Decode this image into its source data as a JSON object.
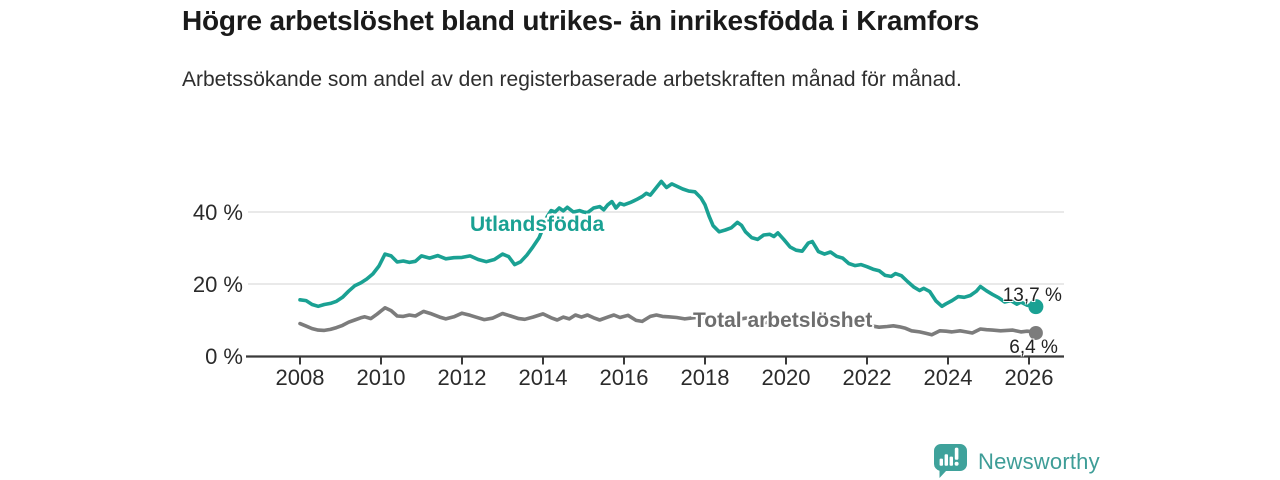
{
  "header": {
    "title": "Högre arbetslöshet bland utrikes- än inrikesfödda i Kramfors",
    "subtitle": "Arbetssökande som andel av den registerbaserade arbetskraften månad för månad."
  },
  "footer": {
    "logo_text": "Newsworthy"
  },
  "colors": {
    "utlandsfodda": "#1aa193",
    "total": "#7c7c7c",
    "total_label": "#6e6e6e",
    "grid": "#dcdcdc",
    "axis": "#3a3a3a",
    "tick_text": "#2b2b2b",
    "title_text": "#1a1a1a",
    "logo_teal": "#3FA29B"
  },
  "chart_data": {
    "type": "line",
    "title": "Högre arbetslöshet bland utrikes- än inrikesfödda i Kramfors",
    "xlabel": "",
    "ylabel": "",
    "grid": true,
    "x_axis": {
      "range": [
        2006.6,
        2026.9
      ],
      "ticks": [
        2008,
        2010,
        2012,
        2014,
        2016,
        2018,
        2020,
        2022,
        2024,
        2026
      ]
    },
    "y_axis": {
      "range": [
        0,
        50
      ],
      "ticks": [
        {
          "value": 0,
          "label": "0 %"
        },
        {
          "value": 20,
          "label": "20 %"
        },
        {
          "value": 40,
          "label": "40 %"
        }
      ]
    },
    "series": [
      {
        "name": "Utlandsfödda",
        "color": "#1aa193",
        "end_label": "13,7 %",
        "end_value": 13.7,
        "points": [
          [
            2008.0,
            15.6
          ],
          [
            2008.15,
            15.4
          ],
          [
            2008.3,
            14.3
          ],
          [
            2008.45,
            13.8
          ],
          [
            2008.6,
            14.3
          ],
          [
            2008.75,
            14.6
          ],
          [
            2008.9,
            15.2
          ],
          [
            2009.05,
            16.3
          ],
          [
            2009.2,
            18.0
          ],
          [
            2009.35,
            19.5
          ],
          [
            2009.5,
            20.3
          ],
          [
            2009.65,
            21.4
          ],
          [
            2009.8,
            22.8
          ],
          [
            2009.95,
            25.0
          ],
          [
            2010.1,
            28.3
          ],
          [
            2010.25,
            27.8
          ],
          [
            2010.4,
            26.1
          ],
          [
            2010.55,
            26.4
          ],
          [
            2010.7,
            26.0
          ],
          [
            2010.85,
            26.3
          ],
          [
            2011.0,
            27.8
          ],
          [
            2011.2,
            27.2
          ],
          [
            2011.4,
            27.9
          ],
          [
            2011.6,
            27.0
          ],
          [
            2011.8,
            27.3
          ],
          [
            2012.0,
            27.4
          ],
          [
            2012.2,
            27.8
          ],
          [
            2012.4,
            26.8
          ],
          [
            2012.6,
            26.2
          ],
          [
            2012.8,
            26.8
          ],
          [
            2013.0,
            28.3
          ],
          [
            2013.15,
            27.6
          ],
          [
            2013.3,
            25.4
          ],
          [
            2013.45,
            26.2
          ],
          [
            2013.6,
            28.0
          ],
          [
            2013.75,
            30.3
          ],
          [
            2013.9,
            32.8
          ],
          [
            2014.0,
            35.5
          ],
          [
            2014.1,
            38.6
          ],
          [
            2014.2,
            40.4
          ],
          [
            2014.3,
            40.0
          ],
          [
            2014.4,
            41.1
          ],
          [
            2014.5,
            40.3
          ],
          [
            2014.6,
            41.3
          ],
          [
            2014.75,
            40.0
          ],
          [
            2014.9,
            40.4
          ],
          [
            2015.0,
            40.0
          ],
          [
            2015.1,
            39.8
          ],
          [
            2015.25,
            41.1
          ],
          [
            2015.4,
            41.5
          ],
          [
            2015.5,
            40.6
          ],
          [
            2015.6,
            42.0
          ],
          [
            2015.7,
            42.9
          ],
          [
            2015.8,
            41.1
          ],
          [
            2015.9,
            42.4
          ],
          [
            2016.0,
            42.0
          ],
          [
            2016.15,
            42.6
          ],
          [
            2016.3,
            43.4
          ],
          [
            2016.45,
            44.3
          ],
          [
            2016.55,
            45.2
          ],
          [
            2016.65,
            44.7
          ],
          [
            2016.8,
            46.8
          ],
          [
            2016.92,
            48.5
          ],
          [
            2017.05,
            46.8
          ],
          [
            2017.18,
            47.8
          ],
          [
            2017.3,
            47.2
          ],
          [
            2017.45,
            46.4
          ],
          [
            2017.6,
            45.8
          ],
          [
            2017.75,
            45.6
          ],
          [
            2017.9,
            43.9
          ],
          [
            2018.0,
            42.0
          ],
          [
            2018.1,
            38.9
          ],
          [
            2018.2,
            36.2
          ],
          [
            2018.35,
            34.5
          ],
          [
            2018.5,
            35.0
          ],
          [
            2018.65,
            35.6
          ],
          [
            2018.8,
            37.1
          ],
          [
            2018.9,
            36.3
          ],
          [
            2019.0,
            34.5
          ],
          [
            2019.15,
            32.9
          ],
          [
            2019.3,
            32.4
          ],
          [
            2019.45,
            33.6
          ],
          [
            2019.6,
            33.8
          ],
          [
            2019.7,
            33.2
          ],
          [
            2019.8,
            34.2
          ],
          [
            2019.95,
            32.3
          ],
          [
            2020.1,
            30.3
          ],
          [
            2020.25,
            29.4
          ],
          [
            2020.4,
            29.1
          ],
          [
            2020.55,
            31.4
          ],
          [
            2020.65,
            31.8
          ],
          [
            2020.8,
            29.0
          ],
          [
            2020.95,
            28.3
          ],
          [
            2021.1,
            28.9
          ],
          [
            2021.25,
            27.7
          ],
          [
            2021.4,
            27.2
          ],
          [
            2021.55,
            25.7
          ],
          [
            2021.7,
            25.1
          ],
          [
            2021.85,
            25.4
          ],
          [
            2022.0,
            24.8
          ],
          [
            2022.15,
            24.1
          ],
          [
            2022.3,
            23.7
          ],
          [
            2022.45,
            22.4
          ],
          [
            2022.6,
            22.1
          ],
          [
            2022.7,
            22.9
          ],
          [
            2022.85,
            22.3
          ],
          [
            2023.0,
            20.7
          ],
          [
            2023.15,
            19.2
          ],
          [
            2023.3,
            18.2
          ],
          [
            2023.4,
            18.8
          ],
          [
            2023.55,
            17.9
          ],
          [
            2023.7,
            15.3
          ],
          [
            2023.85,
            13.8
          ],
          [
            2023.95,
            14.5
          ],
          [
            2024.1,
            15.4
          ],
          [
            2024.25,
            16.5
          ],
          [
            2024.4,
            16.3
          ],
          [
            2024.55,
            16.8
          ],
          [
            2024.7,
            18.0
          ],
          [
            2024.8,
            19.3
          ],
          [
            2024.95,
            18.1
          ],
          [
            2025.1,
            17.1
          ],
          [
            2025.25,
            16.2
          ],
          [
            2025.4,
            15.0
          ],
          [
            2025.55,
            15.4
          ],
          [
            2025.7,
            14.4
          ],
          [
            2025.8,
            15.0
          ],
          [
            2025.95,
            14.1
          ],
          [
            2026.08,
            13.9
          ],
          [
            2026.17,
            13.7
          ]
        ]
      },
      {
        "name": "Total arbetslöshet",
        "color": "#7c7c7c",
        "end_label": "6,4 %",
        "end_value": 6.4,
        "points": [
          [
            2008.0,
            9.0
          ],
          [
            2008.15,
            8.3
          ],
          [
            2008.3,
            7.6
          ],
          [
            2008.45,
            7.2
          ],
          [
            2008.6,
            7.1
          ],
          [
            2008.75,
            7.4
          ],
          [
            2008.9,
            7.9
          ],
          [
            2009.05,
            8.5
          ],
          [
            2009.2,
            9.4
          ],
          [
            2009.35,
            10.0
          ],
          [
            2009.5,
            10.6
          ],
          [
            2009.6,
            10.9
          ],
          [
            2009.75,
            10.4
          ],
          [
            2009.9,
            11.6
          ],
          [
            2010.1,
            13.4
          ],
          [
            2010.25,
            12.6
          ],
          [
            2010.4,
            11.1
          ],
          [
            2010.55,
            11.0
          ],
          [
            2010.7,
            11.4
          ],
          [
            2010.85,
            11.1
          ],
          [
            2011.05,
            12.4
          ],
          [
            2011.25,
            11.7
          ],
          [
            2011.45,
            10.8
          ],
          [
            2011.6,
            10.3
          ],
          [
            2011.8,
            10.9
          ],
          [
            2012.0,
            11.9
          ],
          [
            2012.2,
            11.3
          ],
          [
            2012.4,
            10.6
          ],
          [
            2012.55,
            10.1
          ],
          [
            2012.75,
            10.5
          ],
          [
            2013.0,
            11.8
          ],
          [
            2013.2,
            11.1
          ],
          [
            2013.4,
            10.4
          ],
          [
            2013.55,
            10.2
          ],
          [
            2013.75,
            10.8
          ],
          [
            2014.0,
            11.7
          ],
          [
            2014.2,
            10.6
          ],
          [
            2014.35,
            10.0
          ],
          [
            2014.5,
            10.8
          ],
          [
            2014.65,
            10.3
          ],
          [
            2014.8,
            11.4
          ],
          [
            2014.95,
            10.8
          ],
          [
            2015.1,
            11.4
          ],
          [
            2015.25,
            10.6
          ],
          [
            2015.4,
            10.0
          ],
          [
            2015.6,
            10.8
          ],
          [
            2015.75,
            11.4
          ],
          [
            2015.9,
            10.7
          ],
          [
            2016.1,
            11.3
          ],
          [
            2016.3,
            9.9
          ],
          [
            2016.45,
            9.6
          ],
          [
            2016.65,
            11.0
          ],
          [
            2016.8,
            11.4
          ],
          [
            2016.95,
            11.0
          ],
          [
            2017.1,
            10.9
          ],
          [
            2017.3,
            10.7
          ],
          [
            2017.5,
            10.3
          ],
          [
            2017.7,
            10.6
          ],
          [
            2017.9,
            10.8
          ],
          [
            2018.1,
            11.2
          ],
          [
            2018.3,
            10.4
          ],
          [
            2018.5,
            9.7
          ],
          [
            2018.7,
            9.9
          ],
          [
            2018.9,
            10.3
          ],
          [
            2019.1,
            10.7
          ],
          [
            2019.3,
            9.9
          ],
          [
            2019.5,
            9.3
          ],
          [
            2019.7,
            9.5
          ],
          [
            2019.9,
            9.9
          ],
          [
            2020.1,
            10.4
          ],
          [
            2020.3,
            10.0
          ],
          [
            2020.5,
            10.5
          ],
          [
            2020.7,
            10.2
          ],
          [
            2020.9,
            9.9
          ],
          [
            2021.1,
            10.1
          ],
          [
            2021.3,
            9.4
          ],
          [
            2021.5,
            8.9
          ],
          [
            2021.7,
            8.7
          ],
          [
            2021.9,
            8.6
          ],
          [
            2022.1,
            8.4
          ],
          [
            2022.3,
            8.0
          ],
          [
            2022.5,
            8.2
          ],
          [
            2022.65,
            8.4
          ],
          [
            2022.8,
            8.1
          ],
          [
            2022.95,
            7.7
          ],
          [
            2023.1,
            7.0
          ],
          [
            2023.3,
            6.7
          ],
          [
            2023.45,
            6.3
          ],
          [
            2023.6,
            5.9
          ],
          [
            2023.8,
            7.0
          ],
          [
            2023.95,
            6.9
          ],
          [
            2024.1,
            6.7
          ],
          [
            2024.3,
            7.0
          ],
          [
            2024.45,
            6.7
          ],
          [
            2024.6,
            6.4
          ],
          [
            2024.8,
            7.5
          ],
          [
            2024.95,
            7.3
          ],
          [
            2025.1,
            7.2
          ],
          [
            2025.3,
            7.0
          ],
          [
            2025.45,
            7.1
          ],
          [
            2025.6,
            7.2
          ],
          [
            2025.8,
            6.7
          ],
          [
            2025.95,
            6.9
          ],
          [
            2026.08,
            6.8
          ],
          [
            2026.17,
            6.4
          ]
        ]
      }
    ]
  }
}
